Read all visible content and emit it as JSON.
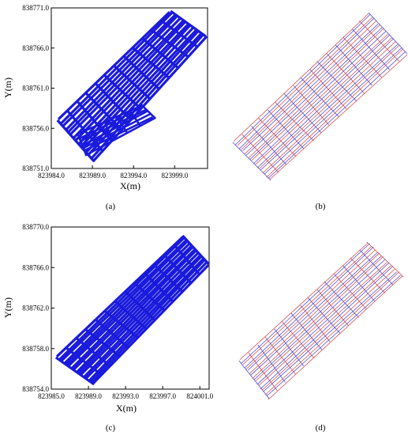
{
  "chart_data": [
    {
      "type": "scatter",
      "panel": "a",
      "caption": "(a)",
      "xlabel": "X(m)",
      "ylabel": "Y(m)",
      "xlim": [
        823984.0,
        824003.0
      ],
      "ylim": [
        838751.0,
        838771.0
      ],
      "x_ticks": [
        "823984.0",
        "823989.0",
        "823994.0",
        "823999.0"
      ],
      "y_ticks": [
        "838751.0",
        "838756.0",
        "838761.0",
        "838766.0",
        "838771.0"
      ],
      "series_color": "#1a1adc"
    },
    {
      "type": "diagram",
      "panel": "b",
      "caption": "(b)"
    },
    {
      "type": "scatter",
      "panel": "c",
      "caption": "(c)",
      "xlabel": "X(m)",
      "ylabel": "Y(m)",
      "xlim": [
        823985.0,
        824002.0
      ],
      "ylim": [
        838754.0,
        838770.0
      ],
      "x_ticks": [
        "823985.0",
        "823989.0",
        "823993.0",
        "823997.0",
        "824001.0"
      ],
      "y_ticks": [
        "838754.0",
        "838758.0",
        "838762.0",
        "838766.0",
        "838770.0"
      ],
      "series_color": "#1a1adc"
    },
    {
      "type": "diagram",
      "panel": "d",
      "caption": "(d)"
    }
  ],
  "colors": {
    "track": "#1a1adc",
    "grid_red": "#d23c3c",
    "grid_blue": "#3c3cd2"
  }
}
